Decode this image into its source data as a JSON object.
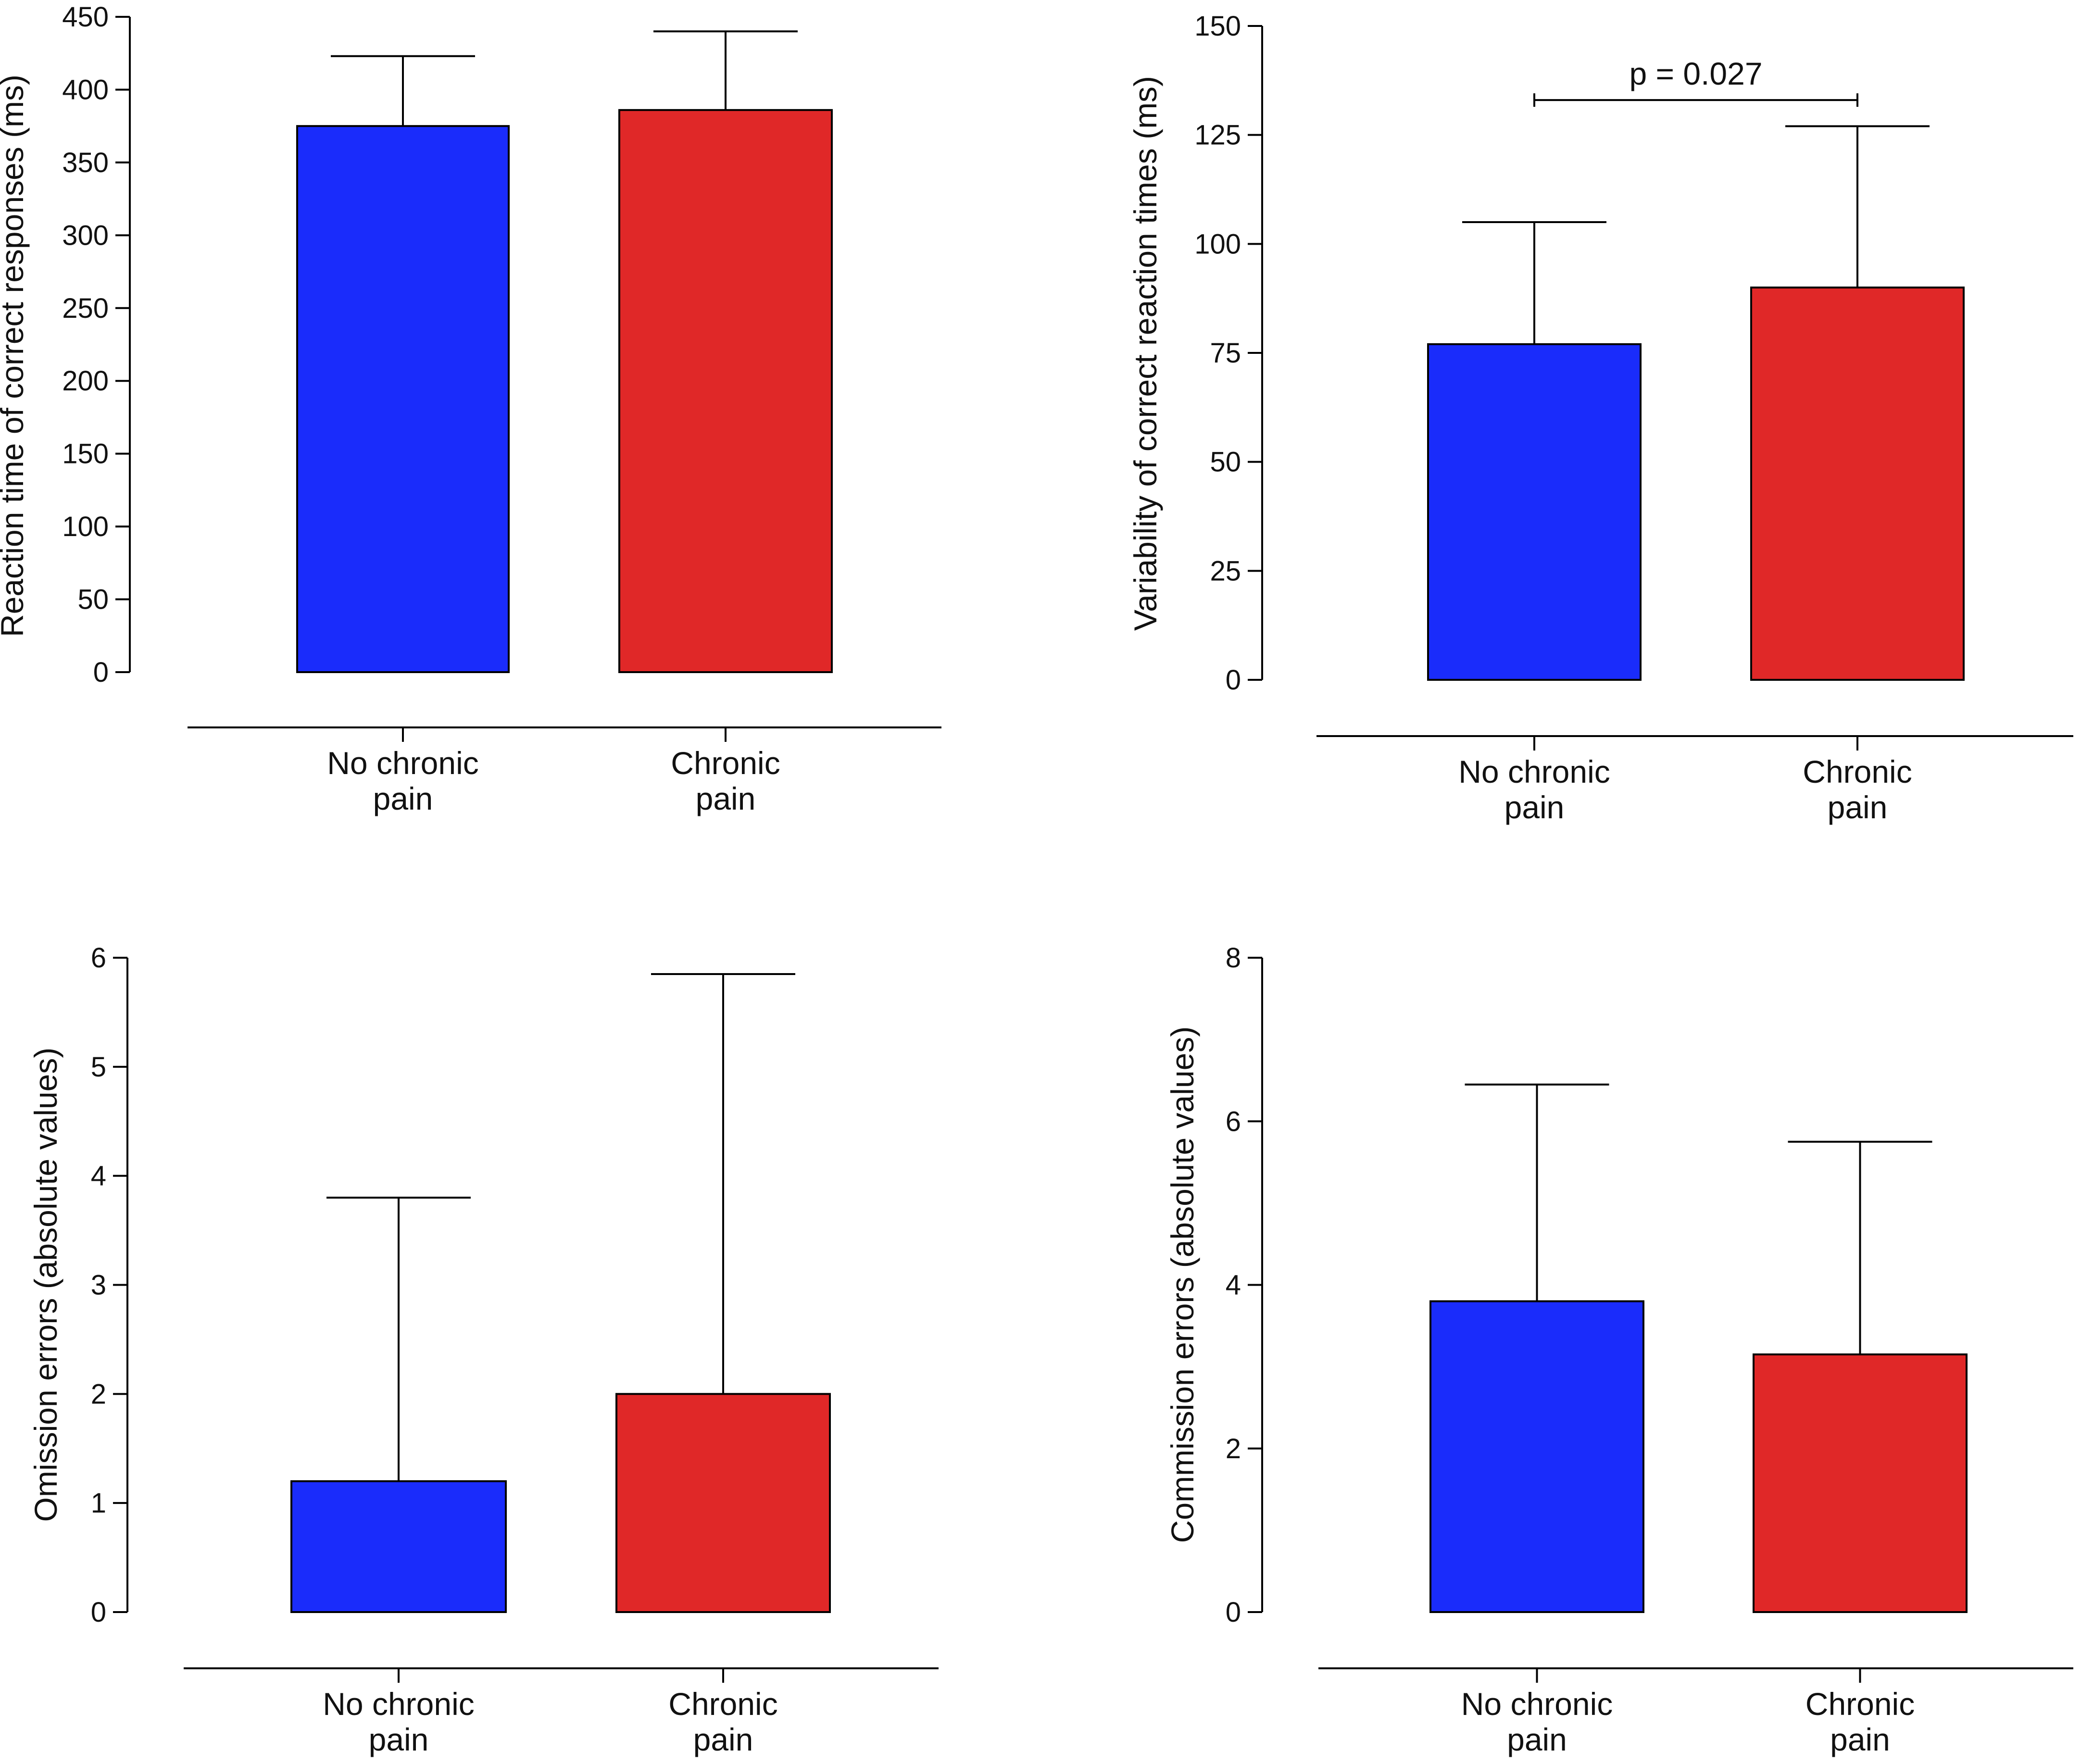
{
  "colors": {
    "no_chronic_pain": "#1a2cfb",
    "chronic_pain": "#e02828"
  },
  "chart_data": [
    {
      "type": "bar",
      "title": "",
      "categories": [
        [
          "No chronic",
          "pain"
        ],
        [
          "Chronic",
          "pain"
        ]
      ],
      "values": [
        375,
        386
      ],
      "error_upper": [
        423,
        440
      ],
      "ylabel": "Reaction time of correct responses (ms)",
      "xlabel": "",
      "ylim": [
        0,
        450
      ],
      "yticks": [
        "0",
        "50",
        "100",
        "150",
        "200",
        "250",
        "300",
        "350",
        "400",
        "450"
      ],
      "annotations": []
    },
    {
      "type": "bar",
      "title": "",
      "categories": [
        [
          "No chronic",
          "pain"
        ],
        [
          "Chronic",
          "pain"
        ]
      ],
      "values": [
        77,
        90
      ],
      "error_upper": [
        105,
        127
      ],
      "ylabel": "Variability of correct reaction times (ms)",
      "xlabel": "",
      "ylim": [
        0,
        150
      ],
      "yticks": [
        "0",
        "25",
        "50",
        "75",
        "100",
        "125",
        "150"
      ],
      "annotations": [
        {
          "type": "significance_bracket",
          "between": [
            0,
            1
          ],
          "level": 133,
          "text": "p = 0.027"
        }
      ]
    },
    {
      "type": "bar",
      "title": "",
      "categories": [
        [
          "No chronic",
          "pain"
        ],
        [
          "Chronic",
          "pain"
        ]
      ],
      "values": [
        1.2,
        2.0
      ],
      "error_upper": [
        3.8,
        5.85
      ],
      "ylabel": "Omission errors (absolute values)",
      "xlabel": "",
      "ylim": [
        0,
        6
      ],
      "yticks": [
        "0",
        "1",
        "2",
        "3",
        "4",
        "5",
        "6"
      ],
      "annotations": []
    },
    {
      "type": "bar",
      "title": "",
      "categories": [
        [
          "No chronic",
          "pain"
        ],
        [
          "Chronic",
          "pain"
        ]
      ],
      "values": [
        3.8,
        3.15
      ],
      "error_upper": [
        6.45,
        5.75
      ],
      "ylabel": "Commission errors (absolute values)",
      "xlabel": "",
      "ylim": [
        0,
        8
      ],
      "yticks": [
        "0",
        "2",
        "4",
        "6",
        "8"
      ],
      "annotations": []
    }
  ]
}
